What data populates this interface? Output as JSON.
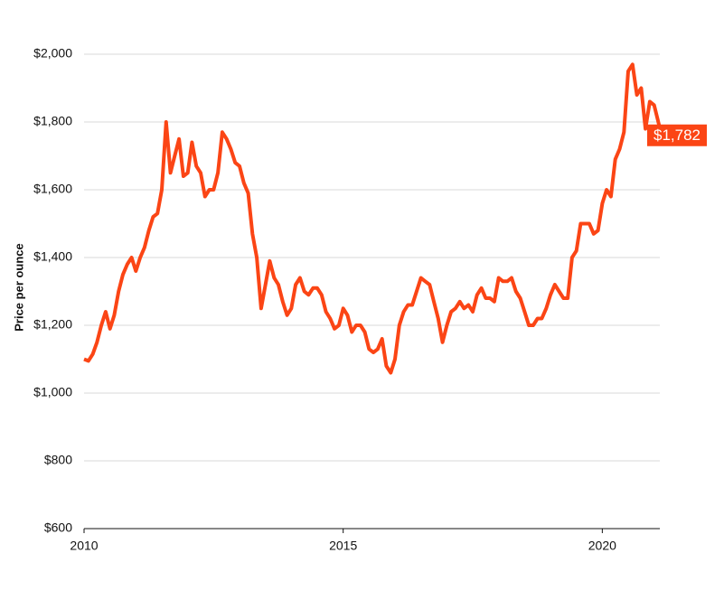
{
  "chart_data": {
    "type": "line",
    "ylabel": "Price per ounce",
    "color": "#fb4515",
    "x": [
      2010,
      2010.083,
      2010.167,
      2010.25,
      2010.333,
      2010.417,
      2010.5,
      2010.583,
      2010.667,
      2010.75,
      2010.833,
      2010.917,
      2011,
      2011.083,
      2011.167,
      2011.25,
      2011.333,
      2011.417,
      2011.5,
      2011.583,
      2011.667,
      2011.75,
      2011.833,
      2011.917,
      2012,
      2012.083,
      2012.167,
      2012.25,
      2012.333,
      2012.417,
      2012.5,
      2012.583,
      2012.667,
      2012.75,
      2012.833,
      2012.917,
      2013,
      2013.083,
      2013.167,
      2013.25,
      2013.333,
      2013.417,
      2013.5,
      2013.583,
      2013.667,
      2013.75,
      2013.833,
      2013.917,
      2014,
      2014.083,
      2014.167,
      2014.25,
      2014.333,
      2014.417,
      2014.5,
      2014.583,
      2014.667,
      2014.75,
      2014.833,
      2014.917,
      2015,
      2015.083,
      2015.167,
      2015.25,
      2015.333,
      2015.417,
      2015.5,
      2015.583,
      2015.667,
      2015.75,
      2015.833,
      2015.917,
      2016,
      2016.083,
      2016.167,
      2016.25,
      2016.333,
      2016.417,
      2016.5,
      2016.583,
      2016.667,
      2016.75,
      2016.833,
      2016.917,
      2017,
      2017.083,
      2017.167,
      2017.25,
      2017.333,
      2017.417,
      2017.5,
      2017.583,
      2017.667,
      2017.75,
      2017.833,
      2017.917,
      2018,
      2018.083,
      2018.167,
      2018.25,
      2018.333,
      2018.417,
      2018.5,
      2018.583,
      2018.667,
      2018.75,
      2018.833,
      2018.917,
      2019,
      2019.083,
      2019.167,
      2019.25,
      2019.333,
      2019.417,
      2019.5,
      2019.583,
      2019.667,
      2019.75,
      2019.833,
      2019.917,
      2020,
      2020.083,
      2020.167,
      2020.25,
      2020.333,
      2020.417,
      2020.5,
      2020.583,
      2020.667,
      2020.75,
      2020.833,
      2020.917,
      2021,
      2021.11
    ],
    "values": [
      1100,
      1095,
      1115,
      1150,
      1200,
      1240,
      1190,
      1230,
      1300,
      1350,
      1380,
      1400,
      1360,
      1400,
      1430,
      1480,
      1520,
      1530,
      1600,
      1800,
      1650,
      1700,
      1750,
      1640,
      1650,
      1740,
      1670,
      1650,
      1580,
      1600,
      1600,
      1650,
      1770,
      1750,
      1720,
      1680,
      1670,
      1620,
      1590,
      1470,
      1400,
      1250,
      1320,
      1390,
      1340,
      1320,
      1270,
      1230,
      1250,
      1320,
      1340,
      1300,
      1290,
      1310,
      1310,
      1290,
      1240,
      1220,
      1190,
      1200,
      1250,
      1230,
      1180,
      1200,
      1200,
      1180,
      1130,
      1120,
      1130,
      1160,
      1080,
      1060,
      1100,
      1200,
      1240,
      1260,
      1260,
      1300,
      1340,
      1330,
      1320,
      1270,
      1220,
      1150,
      1200,
      1240,
      1250,
      1270,
      1250,
      1260,
      1240,
      1290,
      1310,
      1280,
      1280,
      1270,
      1340,
      1330,
      1330,
      1340,
      1300,
      1280,
      1240,
      1200,
      1200,
      1220,
      1220,
      1250,
      1290,
      1320,
      1300,
      1280,
      1280,
      1400,
      1420,
      1500,
      1500,
      1500,
      1470,
      1480,
      1560,
      1600,
      1580,
      1690,
      1720,
      1770,
      1950,
      1970,
      1880,
      1900,
      1780,
      1860,
      1850,
      1782
    ],
    "annotations": [
      {
        "x": 2021.11,
        "y": 1782,
        "label": "$1,782"
      }
    ],
    "xlim": [
      2010,
      2021.11
    ],
    "xticks": [
      2010,
      2015,
      2020
    ],
    "ylim": [
      600,
      2000
    ],
    "yticks": [
      {
        "value": 600,
        "label": "$600"
      },
      {
        "value": 800,
        "label": "$800"
      },
      {
        "value": 1000,
        "label": "$1,000"
      },
      {
        "value": 1200,
        "label": "$1,200"
      },
      {
        "value": 1400,
        "label": "$1,400"
      },
      {
        "value": 1600,
        "label": "$1,600"
      },
      {
        "value": 1800,
        "label": "$1,800"
      },
      {
        "value": 2000,
        "label": "$2,000"
      }
    ],
    "grid": true
  }
}
